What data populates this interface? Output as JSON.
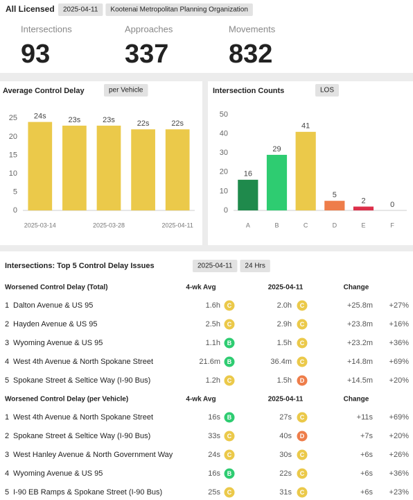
{
  "header": {
    "title": "All Licensed",
    "tags": [
      "2025-04-11",
      "Kootenai Metropolitan Planning Organization"
    ]
  },
  "stats": [
    {
      "label": "Intersections",
      "value": 93
    },
    {
      "label": "Approaches",
      "value": 337
    },
    {
      "label": "Movements",
      "value": 832
    }
  ],
  "chart_data": [
    {
      "type": "bar",
      "title": "Average Control Delay",
      "unit_toggle": "per Vehicle",
      "categories": [
        "2025-03-14",
        null,
        "2025-03-28",
        null,
        "2025-04-11"
      ],
      "values": [
        24,
        23,
        23,
        22,
        22
      ],
      "value_labels": [
        "24s",
        "23s",
        "23s",
        "22s",
        "22s"
      ],
      "color": "#ebc94a",
      "ylim": [
        0,
        26
      ],
      "yticks": [
        0,
        5,
        10,
        15,
        20,
        25
      ],
      "grid": false
    },
    {
      "type": "bar",
      "title": "Intersection Counts",
      "unit_toggle": "LOS",
      "categories": [
        "A",
        "B",
        "C",
        "D",
        "E",
        "F"
      ],
      "values": [
        16,
        29,
        41,
        5,
        2,
        0
      ],
      "colors": [
        "#1f8a4c",
        "#2ecc71",
        "#ebc94a",
        "#ee7d4a",
        "#dc2f4a",
        "#999999"
      ],
      "ylim": [
        0,
        50
      ],
      "yticks": [
        0,
        10,
        20,
        30,
        40,
        50
      ],
      "grid": false
    }
  ],
  "table": {
    "title": "Intersections: Top 5 Control Delay Issues",
    "tags": [
      "2025-04-11",
      "24 Hrs"
    ],
    "sections": [
      {
        "columns": [
          "Worsened Control Delay (Total)",
          "4-wk Avg",
          "2025-04-11",
          "Change"
        ],
        "rows": [
          [
            1,
            "Dalton Avenue & US 95",
            "1.6h",
            "C",
            "2.0h",
            "C",
            "+25.8m",
            "+27%"
          ],
          [
            2,
            "Hayden Avenue & US 95",
            "2.5h",
            "C",
            "2.9h",
            "C",
            "+23.8m",
            "+16%"
          ],
          [
            3,
            "Wyoming Avenue & US 95",
            "1.1h",
            "B",
            "1.5h",
            "C",
            "+23.2m",
            "+36%"
          ],
          [
            4,
            "West 4th Avenue & North Spokane Street",
            "21.6m",
            "B",
            "36.4m",
            "C",
            "+14.8m",
            "+69%"
          ],
          [
            5,
            "Spokane Street & Seltice Way (I-90 Bus)",
            "1.2h",
            "C",
            "1.5h",
            "D",
            "+14.5m",
            "+20%"
          ]
        ]
      },
      {
        "columns": [
          "Worsened Control Delay (per Vehicle)",
          "4-wk Avg",
          "2025-04-11",
          "Change"
        ],
        "rows": [
          [
            1,
            "West 4th Avenue & North Spokane Street",
            "16s",
            "B",
            "27s",
            "C",
            "+11s",
            "+69%"
          ],
          [
            2,
            "Spokane Street & Seltice Way (I-90 Bus)",
            "33s",
            "C",
            "40s",
            "D",
            "+7s",
            "+20%"
          ],
          [
            3,
            "West Hanley Avenue & North Government Way",
            "24s",
            "C",
            "30s",
            "C",
            "+6s",
            "+26%"
          ],
          [
            4,
            "Wyoming Avenue & US 95",
            "16s",
            "B",
            "22s",
            "C",
            "+6s",
            "+36%"
          ],
          [
            5,
            "I-90 EB Ramps & Spokane Street (I-90 Bus)",
            "25s",
            "C",
            "31s",
            "C",
            "+6s",
            "+23%"
          ]
        ]
      }
    ]
  }
}
